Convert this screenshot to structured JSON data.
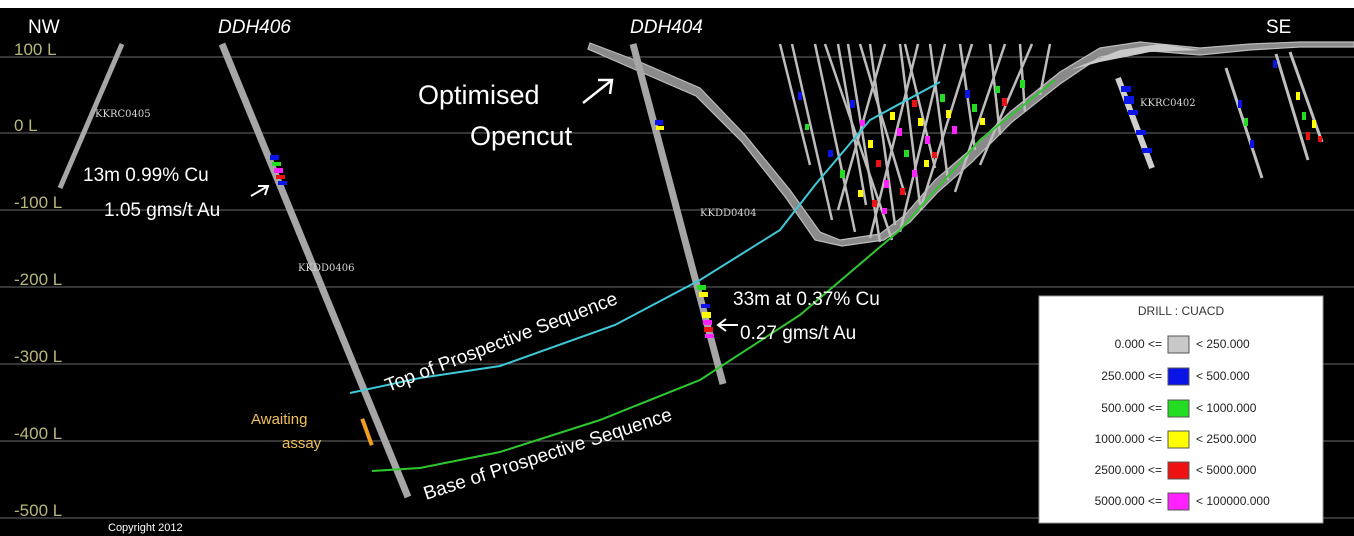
{
  "direction": {
    "left": "NW",
    "right": "SE"
  },
  "drill_holes": {
    "left": "DDH406",
    "middle": "DDH404"
  },
  "levels": [
    "100 L",
    "0 L",
    "-100 L",
    "-200 L",
    "-300 L",
    "-400 L",
    "-500 L"
  ],
  "hole_tags": [
    "KKRC0405",
    "KKDD0406",
    "KKDD0404",
    "KKRC0402"
  ],
  "opencut_label": [
    "Optimised",
    "Opencut"
  ],
  "intercepts": {
    "ddh406": [
      "13m 0.99% Cu",
      "1.05 gms/t Au"
    ],
    "ddh404": [
      "33m at 0.37% Cu",
      "0.27 gms/t Au"
    ]
  },
  "sequences": {
    "top": "Top of Prospective Sequence",
    "base": "Base of Prospective  Sequence"
  },
  "awaiting": [
    "Awaiting",
    "assay"
  ],
  "copyright": "Copyright 2012",
  "legend": {
    "title": "DRILL : CUACD",
    "rows": [
      {
        "low": "0.000 <=",
        "high": "< 250.000",
        "color": "#c8c8c8"
      },
      {
        "low": "250.000 <=",
        "high": "< 500.000",
        "color": "#0a14e6"
      },
      {
        "low": "500.000 <=",
        "high": "< 1000.000",
        "color": "#22dd22"
      },
      {
        "low": "1000.000 <=",
        "high": "< 2500.000",
        "color": "#ffff00"
      },
      {
        "low": "2500.000 <=",
        "high": "< 5000.000",
        "color": "#ee1111"
      },
      {
        "low": "5000.000 <=",
        "high": "< 100000.000",
        "color": "#ff22ff"
      }
    ]
  },
  "colors": {
    "background": "#000000",
    "top_sequence": "#3fc8d8",
    "base_sequence": "#2ec82e",
    "awaiting": "#f0a020"
  }
}
